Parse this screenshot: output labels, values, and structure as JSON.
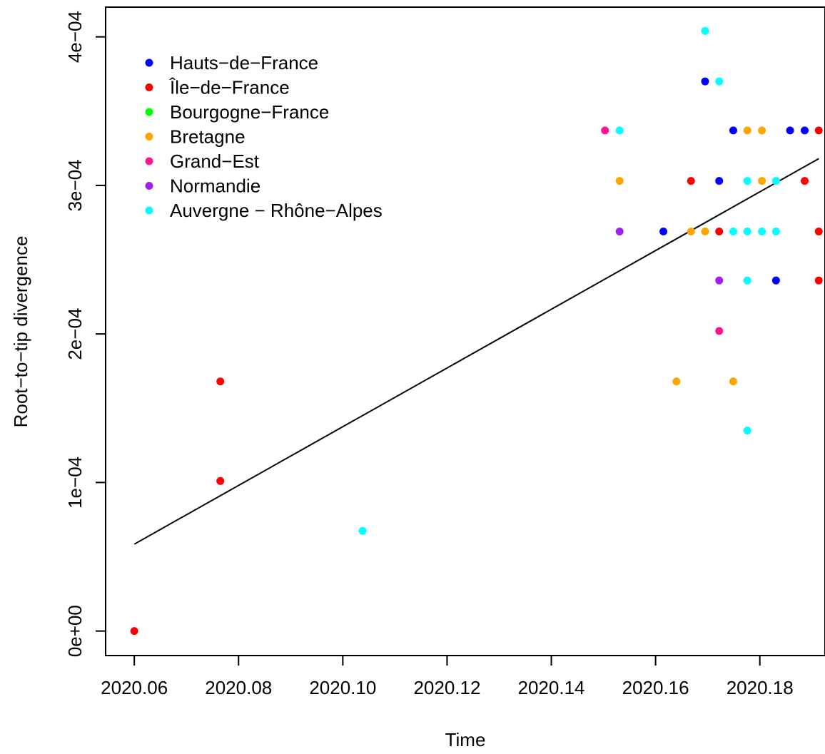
{
  "chart_data": {
    "type": "scatter",
    "title": "",
    "xlabel": "Time",
    "ylabel": "Root−to−tip divergence",
    "xlim": [
      2020.0545,
      2020.1925
    ],
    "ylim": [
      -1.65e-05,
      0.00042
    ],
    "x_ticks": [
      2020.06,
      2020.08,
      2020.1,
      2020.12,
      2020.14,
      2020.16,
      2020.18
    ],
    "x_tick_labels": [
      "2020.06",
      "2020.08",
      "2020.10",
      "2020.12",
      "2020.14",
      "2020.16",
      "2020.18"
    ],
    "y_ticks": [
      0,
      0.0001,
      0.0002,
      0.0003,
      0.0004
    ],
    "y_tick_labels": [
      "0e+00",
      "1e−04",
      "2e−04",
      "3e−04",
      "4e−04"
    ],
    "legend_position": "top-left",
    "series": [
      {
        "name": "Hauts−de−France",
        "color": "#0000ff",
        "points": [
          [
            2020.1615,
            0.000269
          ],
          [
            2020.1695,
            0.00037
          ],
          [
            2020.1722,
            0.000303
          ],
          [
            2020.1749,
            0.000337
          ],
          [
            2020.1831,
            0.000236
          ],
          [
            2020.1858,
            0.000337
          ],
          [
            2020.1886,
            0.000337
          ]
        ]
      },
      {
        "name": "Île−de−France",
        "color": "#ff0000",
        "points": [
          [
            2020.06,
            0.0
          ],
          [
            2020.0765,
            0.000101
          ],
          [
            2020.0765,
            0.000168
          ],
          [
            2020.1668,
            0.000303
          ],
          [
            2020.1722,
            0.000269
          ],
          [
            2020.1886,
            0.000303
          ],
          [
            2020.1913,
            0.000337
          ],
          [
            2020.1913,
            0.000269
          ],
          [
            2020.1913,
            0.000236
          ]
        ]
      },
      {
        "name": "Bourgogne−France",
        "color": "#00ff00",
        "points": []
      },
      {
        "name": "Bretagne",
        "color": "#ffa500",
        "points": [
          [
            2020.1531,
            0.000303
          ],
          [
            2020.164,
            0.000168
          ],
          [
            2020.1668,
            0.000269
          ],
          [
            2020.1695,
            0.000269
          ],
          [
            2020.1749,
            0.000168
          ],
          [
            2020.1776,
            0.000337
          ],
          [
            2020.1804,
            0.000337
          ],
          [
            2020.1804,
            0.000303
          ]
        ]
      },
      {
        "name": "Grand−Est",
        "color": "#ff1493",
        "points": [
          [
            2020.1503,
            0.000337
          ],
          [
            2020.1722,
            0.000202
          ]
        ]
      },
      {
        "name": "Normandie",
        "color": "#a020f0",
        "points": [
          [
            2020.1531,
            0.000269
          ],
          [
            2020.1722,
            0.000236
          ]
        ]
      },
      {
        "name": "Auvergne − Rhône−Alpes",
        "color": "#00ffff",
        "points": [
          [
            2020.1038,
            6.74e-05
          ],
          [
            2020.1531,
            0.000337
          ],
          [
            2020.1695,
            0.000404
          ],
          [
            2020.1722,
            0.00037
          ],
          [
            2020.1749,
            0.000269
          ],
          [
            2020.1776,
            0.000303
          ],
          [
            2020.1776,
            0.000269
          ],
          [
            2020.1776,
            0.000236
          ],
          [
            2020.1776,
            0.000135
          ],
          [
            2020.1804,
            0.000269
          ],
          [
            2020.1831,
            0.000303
          ],
          [
            2020.1831,
            0.000269
          ]
        ]
      }
    ],
    "regression_line": {
      "x": [
        2020.06,
        2020.1913
      ],
      "y": [
        5.85e-05,
        0.000318
      ],
      "color": "#000000"
    }
  }
}
